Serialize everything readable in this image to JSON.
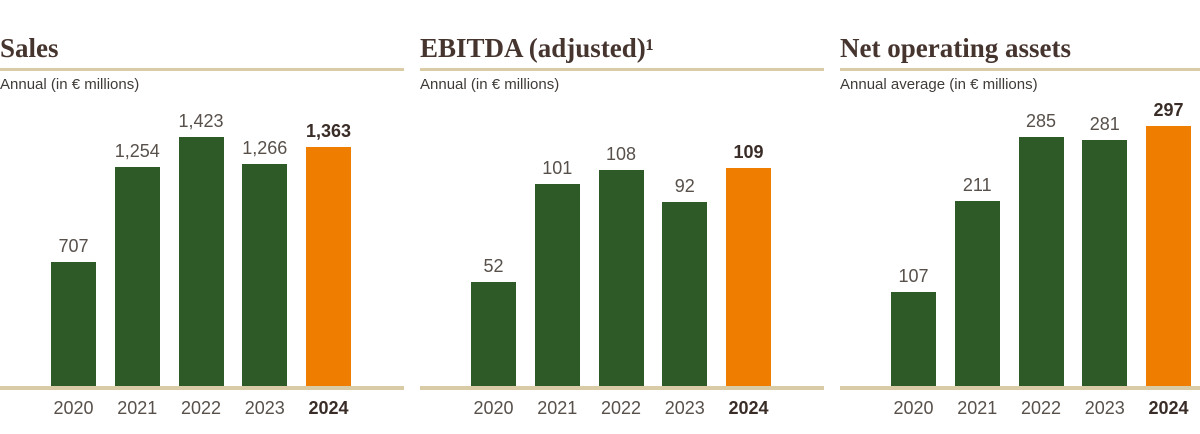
{
  "colors": {
    "bar_green": "#2d5a27",
    "bar_orange": "#ef7d00",
    "rule_tan": "#d8cba6",
    "title_text": "#46352f",
    "subtitle_text": "#3f3b38",
    "label_text": "#57504b",
    "highlight_text": "#3a2d28",
    "page_background": "#ffffff"
  },
  "chart_data": [
    {
      "type": "bar",
      "title": "Sales",
      "subtitle": "Annual (in € millions)",
      "categories": [
        "2020",
        "2021",
        "2022",
        "2023",
        "2024"
      ],
      "values": [
        707,
        1254,
        1423,
        1266,
        1363
      ],
      "value_labels": [
        "707",
        "1,254",
        "1,423",
        "1,266",
        "1,363"
      ],
      "highlight_index": 4,
      "ylim": [
        0,
        1600
      ],
      "grid": false,
      "legend": "none"
    },
    {
      "type": "bar",
      "title": "EBITDA (adjusted)¹",
      "subtitle": "Annual (in € millions)",
      "categories": [
        "2020",
        "2021",
        "2022",
        "2023",
        "2024"
      ],
      "values": [
        52,
        101,
        108,
        92,
        109
      ],
      "value_labels": [
        "52",
        "101",
        "108",
        "92",
        "109"
      ],
      "highlight_index": 4,
      "ylim": [
        0,
        140
      ],
      "grid": false,
      "legend": "none"
    },
    {
      "type": "bar",
      "title": "Net operating assets",
      "subtitle": "Annual average (in € millions)",
      "categories": [
        "2020",
        "2021",
        "2022",
        "2023",
        "2024"
      ],
      "values": [
        107,
        211,
        285,
        281,
        297
      ],
      "value_labels": [
        "107",
        "211",
        "285",
        "281",
        "297"
      ],
      "highlight_index": 4,
      "ylim": [
        0,
        320
      ],
      "grid": false,
      "legend": "none"
    }
  ]
}
